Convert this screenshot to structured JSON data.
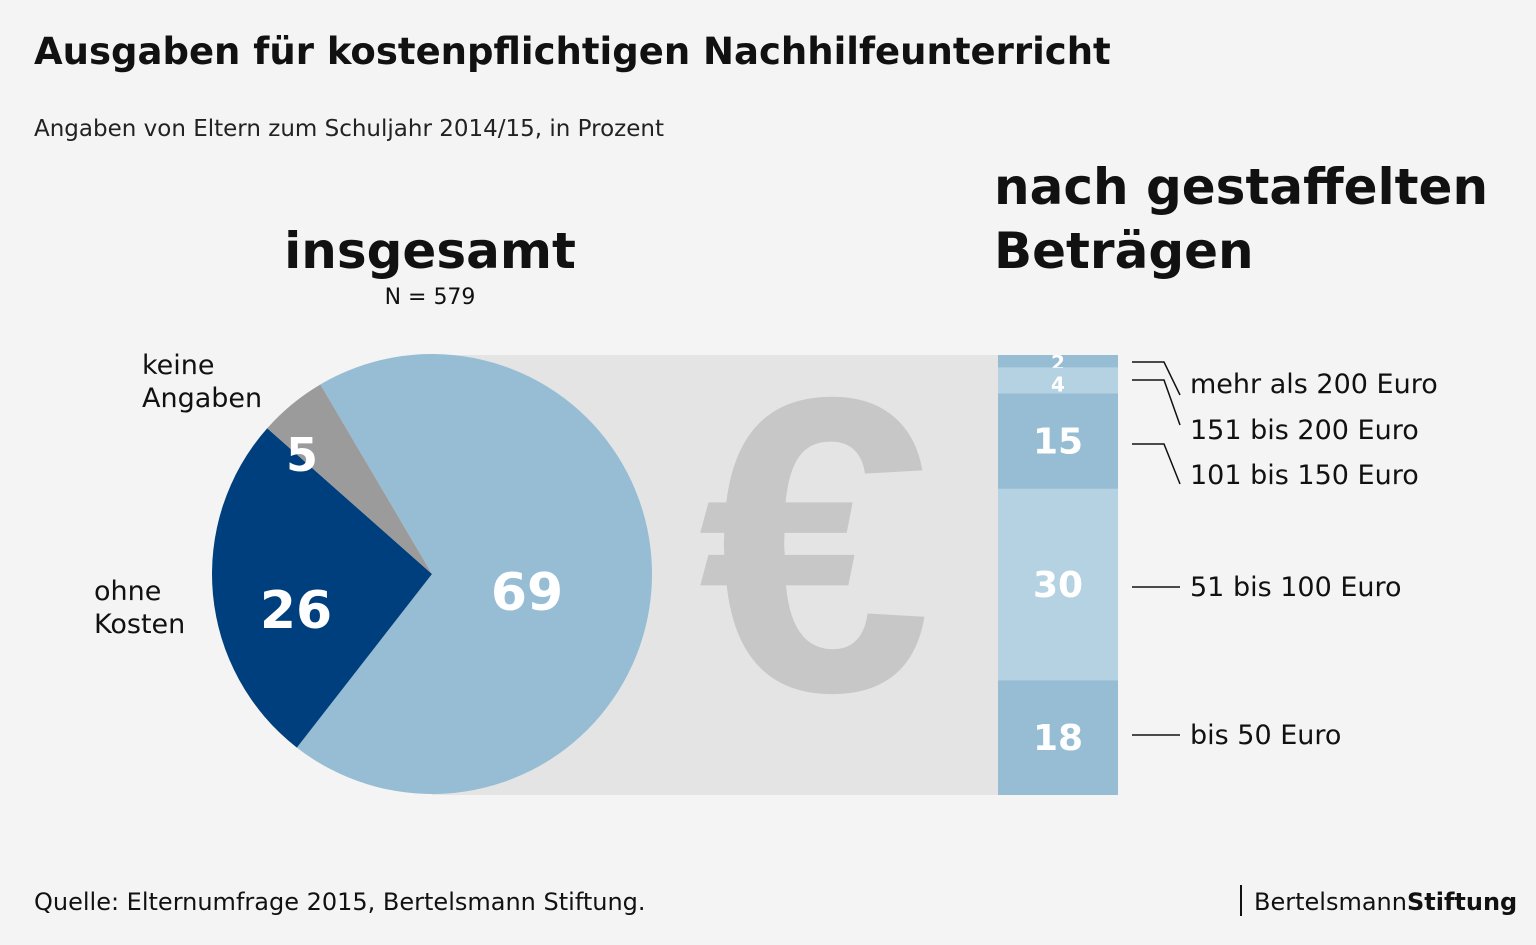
{
  "title": "Ausgaben für kostenpflichtigen Nachhilfeunterricht",
  "subtitle": "Angaben von Eltern zum Schuljahr 2014/15, in Prozent",
  "source": "Quelle: Elternumfrage 2015, Bertelsmann Stiftung.",
  "logo": {
    "part1": "Bertelsmann",
    "part2": "Stiftung"
  },
  "colors": {
    "light_blue": "#96bdd4",
    "lighter_blue": "#b5d2e3",
    "dark_blue": "#003f7d",
    "grey": "#9b9b9b",
    "panel": "#e4e4e4",
    "euro": "#c6c7c6"
  },
  "icon": "euro-sign",
  "chart_data": [
    {
      "type": "pie",
      "title": "insgesamt",
      "subtitle": "N = 579",
      "slices": [
        {
          "label": "",
          "value": 69,
          "color": "#96bdd4"
        },
        {
          "label": "ohne Kosten",
          "value": 26,
          "color": "#003f7d"
        },
        {
          "label": "keine Angaben",
          "value": 5,
          "color": "#9b9b9b"
        }
      ]
    },
    {
      "type": "bar",
      "stacked": true,
      "title": "nach gestaffelten Beträgen",
      "segments": [
        {
          "label": "mehr als 200 Euro",
          "value": 2,
          "color": "#96bdd4"
        },
        {
          "label": "151 bis 200 Euro",
          "value": 4,
          "color": "#b5d2e3"
        },
        {
          "label": "101 bis 150 Euro",
          "value": 15,
          "color": "#96bdd4"
        },
        {
          "label": "51 bis 100 Euro",
          "value": 30,
          "color": "#b5d2e3"
        },
        {
          "label": "bis 50 Euro",
          "value": 18,
          "color": "#96bdd4"
        }
      ]
    }
  ]
}
